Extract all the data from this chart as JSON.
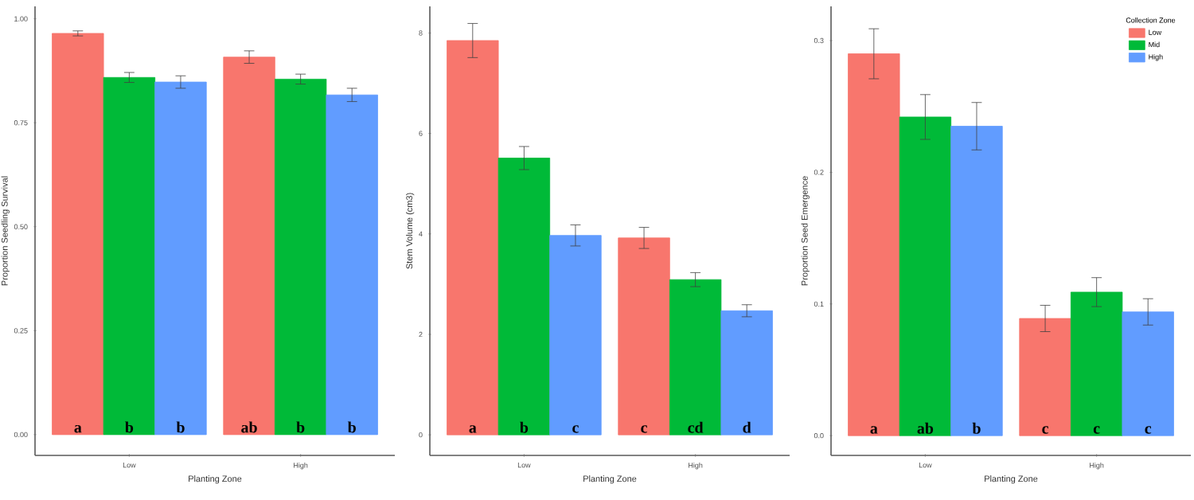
{
  "chart_data": [
    {
      "type": "bar",
      "categories": [
        "Low",
        "High"
      ],
      "xlabel": "Planting Zone",
      "ylabel": "Proportion Seedling Survival",
      "ylim": [
        -0.05,
        1.03
      ],
      "yticks": [
        {
          "value": 0,
          "label": "0.00"
        },
        {
          "value": 0.25,
          "label": "0.25"
        },
        {
          "value": 0.5,
          "label": "0.50"
        },
        {
          "value": 0.75,
          "label": "0.75"
        },
        {
          "value": 1,
          "label": "1.00"
        }
      ],
      "series": [
        {
          "color": "#f8766d",
          "values": [
            0.965,
            0.908
          ],
          "errors": [
            0.006,
            0.015
          ],
          "value_labels": [
            "a",
            "ab"
          ]
        },
        {
          "color": "#00ba38",
          "values": [
            0.859,
            0.855
          ],
          "errors": [
            0.012,
            0.012
          ],
          "value_labels": [
            "b",
            "b"
          ]
        },
        {
          "color": "#619cff",
          "values": [
            0.848,
            0.817
          ],
          "errors": [
            0.015,
            0.016
          ],
          "value_labels": [
            "b",
            "b"
          ]
        }
      ]
    },
    {
      "type": "bar",
      "categories": [
        "Low",
        "High"
      ],
      "xlabel": "Planting Zone",
      "ylabel": "Stem Volume (cm3)",
      "ylim": [
        -0.41,
        8.53
      ],
      "yticks": [
        0,
        2,
        4,
        6,
        8
      ],
      "series": [
        {
          "color": "#f8766d",
          "values": [
            7.85,
            3.92
          ],
          "errors": [
            0.34,
            0.21
          ],
          "value_labels": [
            "a",
            "c"
          ]
        },
        {
          "color": "#00ba38",
          "values": [
            5.51,
            3.09
          ],
          "errors": [
            0.23,
            0.14
          ],
          "value_labels": [
            "b",
            "cd"
          ]
        },
        {
          "color": "#619cff",
          "values": [
            3.97,
            2.47
          ],
          "errors": [
            0.21,
            0.12
          ],
          "value_labels": [
            "c",
            "d"
          ]
        }
      ]
    },
    {
      "type": "bar",
      "categories": [
        "Low",
        "High"
      ],
      "xlabel": "Planting Zone",
      "ylabel": "Proportion Seed Emergence",
      "ylim": [
        -0.015,
        0.326
      ],
      "yticks": [
        {
          "value": 0,
          "label": "0.0"
        },
        {
          "value": 0.1,
          "label": "0.1"
        },
        {
          "value": 0.2,
          "label": "0.2"
        },
        {
          "value": 0.3,
          "label": "0.3"
        }
      ],
      "legend": "top right",
      "legend_title": "Collection Zone",
      "series": [
        {
          "name": "Low",
          "color": "#f8766d",
          "values": [
            0.29,
            0.089
          ],
          "errors": [
            0.019,
            0.01
          ],
          "value_labels": [
            "a",
            "c"
          ]
        },
        {
          "name": "Mid",
          "color": "#00ba38",
          "values": [
            0.242,
            0.109
          ],
          "errors": [
            0.017,
            0.011
          ],
          "value_labels": [
            "ab",
            "c"
          ]
        },
        {
          "name": "High",
          "color": "#619cff",
          "values": [
            0.235,
            0.094
          ],
          "errors": [
            0.018,
            0.01
          ],
          "value_labels": [
            "b",
            "c"
          ]
        }
      ]
    }
  ]
}
